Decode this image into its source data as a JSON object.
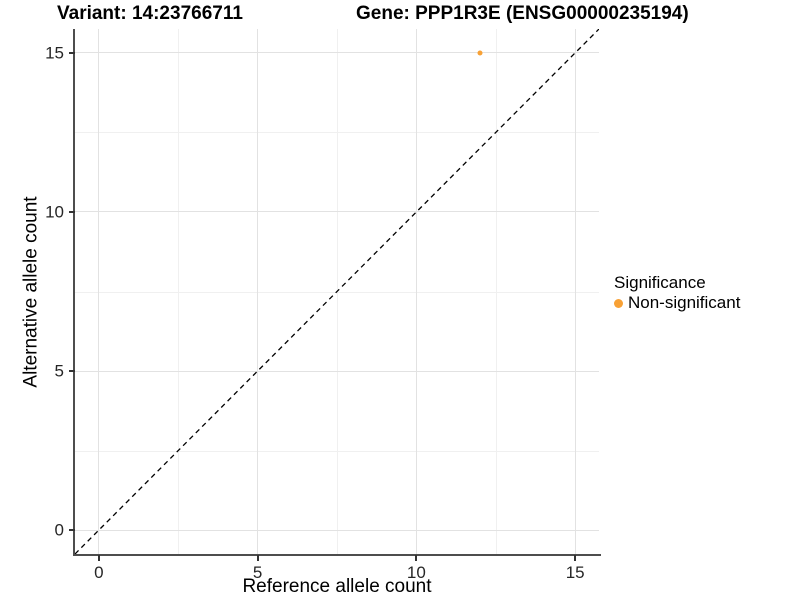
{
  "titles": {
    "variant": "Variant: 14:23766711",
    "gene": "Gene: PPP1R3E (ENSG00000235194)"
  },
  "axes": {
    "x": {
      "label": "Reference allele count",
      "tick_labels": [
        "0",
        "5",
        "10",
        "15"
      ]
    },
    "y": {
      "label": "Alternative allele count",
      "tick_labels": [
        "0",
        "5",
        "10",
        "15"
      ]
    }
  },
  "legend": {
    "title": "Significance",
    "items": [
      {
        "label": "Non-significant",
        "color": "#F8A135"
      }
    ]
  },
  "colors": {
    "point_orange": "#F8A135",
    "reference_line": "#000000",
    "grid_major": "#e2e2e2",
    "grid_minor": "#f0f0f0",
    "axis_line": "#4d4d4d"
  },
  "chart_data": {
    "type": "scatter",
    "title_left": "Variant: 14:23766711",
    "title_right": "Gene: PPP1R3E (ENSG00000235194)",
    "xlabel": "Reference allele count",
    "ylabel": "Alternative allele count",
    "xlim": [
      -0.75,
      15.75
    ],
    "ylim": [
      -0.75,
      15.75
    ],
    "xticks": [
      0,
      5,
      10,
      15
    ],
    "yticks": [
      0,
      5,
      10,
      15
    ],
    "grid": true,
    "legend_position": "right",
    "series": [
      {
        "name": "Non-significant",
        "color": "#F8A135",
        "points": [
          {
            "x": 12,
            "y": 15
          }
        ]
      }
    ],
    "reference_line": {
      "kind": "identity y=x",
      "style": "dashed",
      "color": "#000000",
      "from": [
        -0.75,
        -0.75
      ],
      "to": [
        15.75,
        15.75
      ]
    }
  }
}
